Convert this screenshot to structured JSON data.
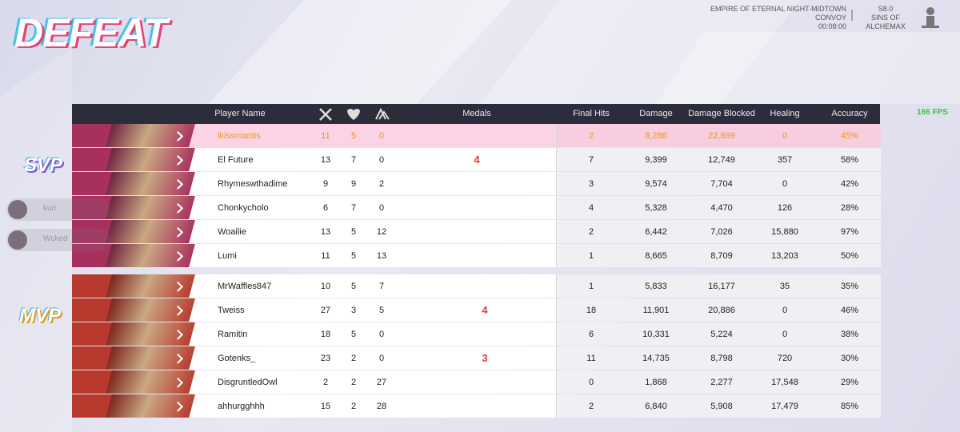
{
  "header": {
    "result": "DEFEAT",
    "map": "EMPIRE OF ETERNAL NIGHT-MIDTOWN",
    "mode": "CONVOY",
    "time": "00:08:00",
    "season": "S8.0",
    "season_name": "SINS OF ALCHEMAX",
    "fps": "166 FPS"
  },
  "side_friends": [
    "kuri",
    "Wcked"
  ],
  "table": {
    "columns": {
      "player": "Player Name",
      "medals": "Medals",
      "final_hits": "Final Hits",
      "damage": "Damage",
      "blocked": "Damage Blocked",
      "healing": "Healing",
      "accuracy": "Accuracy"
    },
    "teams": [
      {
        "award": "SVP",
        "rows": [
          {
            "name": "ikissmantis",
            "kills": 11,
            "deaths": 5,
            "assists": 0,
            "final_hits": 2,
            "damage": "8,286",
            "blocked": "22,899",
            "healing": 0,
            "accuracy": "45%"
          },
          {
            "name": "El Future",
            "kills": 13,
            "deaths": 7,
            "assists": 0,
            "medal": "4",
            "final_hits": 7,
            "damage": "9,399",
            "blocked": "12,749",
            "healing": 357,
            "accuracy": "58%"
          },
          {
            "name": "Rhymeswthadime",
            "kills": 9,
            "deaths": 9,
            "assists": 2,
            "final_hits": 3,
            "damage": "9,574",
            "blocked": "7,704",
            "healing": 0,
            "accuracy": "42%"
          },
          {
            "name": "Chonkycholo",
            "kills": 6,
            "deaths": 7,
            "assists": 0,
            "final_hits": 4,
            "damage": "5,328",
            "blocked": "4,470",
            "healing": 126,
            "accuracy": "28%"
          },
          {
            "name": "Woailie",
            "kills": 13,
            "deaths": 5,
            "assists": 12,
            "final_hits": 2,
            "damage": "6,442",
            "blocked": "7,026",
            "healing": "15,880",
            "accuracy": "97%"
          },
          {
            "name": "Lumi",
            "kills": 11,
            "deaths": 5,
            "assists": 13,
            "final_hits": 1,
            "damage": "8,665",
            "blocked": "8,709",
            "healing": "13,203",
            "accuracy": "50%"
          }
        ]
      },
      {
        "award": "MVP",
        "rows": [
          {
            "name": "MrWaffles847",
            "kills": 10,
            "deaths": 5,
            "assists": 7,
            "final_hits": 1,
            "damage": "5,833",
            "blocked": "16,177",
            "healing": 35,
            "accuracy": "35%"
          },
          {
            "name": "Tweiss",
            "kills": 27,
            "deaths": 3,
            "assists": 5,
            "medal": "4",
            "final_hits": 18,
            "damage": "11,901",
            "blocked": "20,886",
            "healing": 0,
            "accuracy": "46%"
          },
          {
            "name": "Ramitin",
            "kills": 18,
            "deaths": 5,
            "assists": 0,
            "final_hits": 6,
            "damage": "10,331",
            "blocked": "5,224",
            "healing": 0,
            "accuracy": "38%"
          },
          {
            "name": "Gotenks_",
            "kills": 23,
            "deaths": 2,
            "assists": 0,
            "medal": "3",
            "final_hits": 11,
            "damage": "14,735",
            "blocked": "8,798",
            "healing": 720,
            "accuracy": "30%"
          },
          {
            "name": "DisgruntledOwl",
            "kills": 2,
            "deaths": 2,
            "assists": 27,
            "final_hits": 0,
            "damage": "1,868",
            "blocked": "2,277",
            "healing": "17,548",
            "accuracy": "29%"
          },
          {
            "name": "ahhurgghhh",
            "kills": 15,
            "deaths": 2,
            "assists": 28,
            "final_hits": 2,
            "damage": "6,840",
            "blocked": "5,908",
            "healing": "17,479",
            "accuracy": "85%"
          }
        ]
      }
    ]
  }
}
